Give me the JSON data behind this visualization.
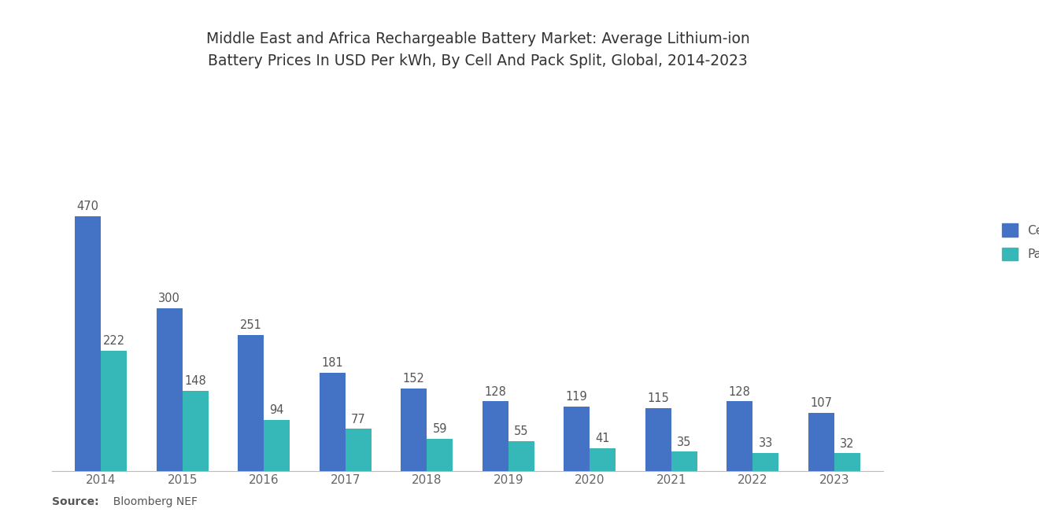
{
  "title": "Middle East and Africa Rechargeable Battery Market: Average Lithium-ion\nBattery Prices In USD Per kWh, By Cell And Pack Split, Global, 2014-2023",
  "years": [
    "2014",
    "2015",
    "2016",
    "2017",
    "2018",
    "2019",
    "2020",
    "2021",
    "2022",
    "2023"
  ],
  "cell_values": [
    470,
    300,
    251,
    181,
    152,
    128,
    119,
    115,
    128,
    107
  ],
  "pack_values": [
    222,
    148,
    94,
    77,
    59,
    55,
    41,
    35,
    33,
    32
  ],
  "cell_color": "#4472C4",
  "pack_color": "#36B8B8",
  "background_color": "#FFFFFF",
  "title_fontsize": 13.5,
  "label_fontsize": 10.5,
  "tick_fontsize": 11,
  "legend_labels": [
    "Cell",
    "Pack"
  ],
  "source_bold": "Source:",
  "source_normal": "  Bloomberg NEF",
  "bar_width": 0.32,
  "ylim": [
    0,
    560
  ],
  "label_color": "#555555"
}
